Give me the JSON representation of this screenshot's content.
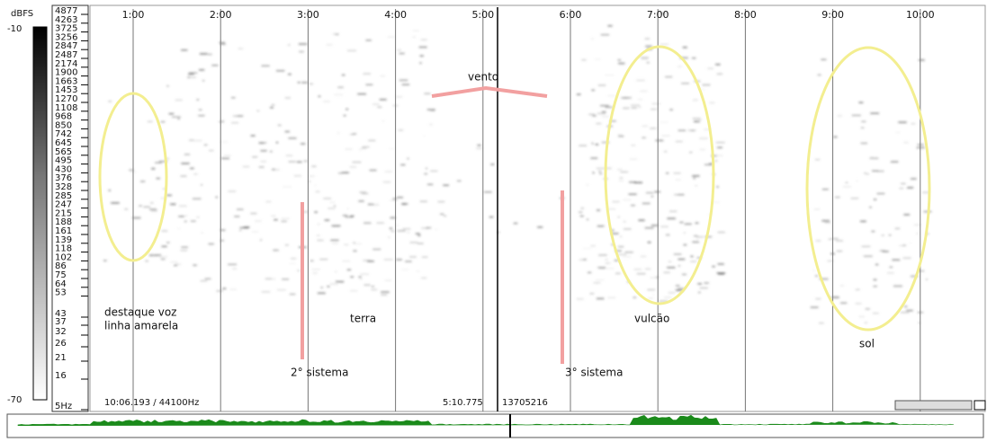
{
  "color_scale": {
    "label": "dBFS",
    "max": "-10",
    "min": "-70"
  },
  "frequency_labels": [
    "4877",
    "4263",
    "3725",
    "3256",
    "2847",
    "2487",
    "2174",
    "1900",
    "1663",
    "1453",
    "1270",
    "1108",
    "968",
    "850",
    "742",
    "645",
    "565",
    "495",
    "430",
    "376",
    "328",
    "285",
    "247",
    "215",
    "188",
    "161",
    "139",
    "118",
    "102",
    "86",
    "75",
    "64",
    "53",
    "43",
    "37",
    "32",
    "26",
    "21",
    "16",
    "5Hz"
  ],
  "time_labels": [
    "1:00",
    "2:00",
    "3:00",
    "4:00",
    "5:00",
    "6:00",
    "7:00",
    "8:00",
    "9:00",
    "10:00"
  ],
  "annotations": [
    "vento",
    "destaque voz",
    "linha amarela",
    "terra",
    "2° sistema",
    "3° sistema",
    "vulcão",
    "sol"
  ],
  "status": {
    "length": "10:06.193 / 44100Hz",
    "cursor": "5:10.775",
    "sample": "13705216"
  }
}
